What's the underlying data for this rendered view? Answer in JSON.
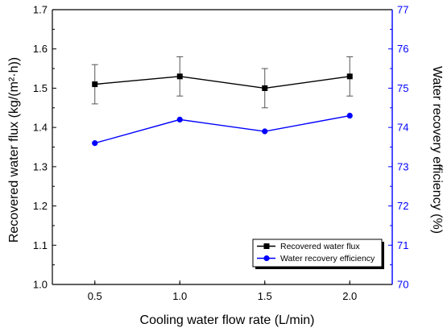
{
  "chart_data": {
    "type": "line",
    "xlabel": "Cooling water flow rate (L/min)",
    "ylabel_left": "Recovered water flux (kg/(m²·h))",
    "ylabel_right": "Water recovery efficiency (%)",
    "x": [
      0.5,
      1.0,
      1.5,
      2.0
    ],
    "x_ticks": [
      "0.5",
      "1.0",
      "1.5",
      "2.0"
    ],
    "xlim": [
      0.25,
      2.25
    ],
    "ylim_left": [
      1.0,
      1.7
    ],
    "yticks_left": [
      "1.0",
      "1.1",
      "1.2",
      "1.3",
      "1.4",
      "1.5",
      "1.6",
      "1.7"
    ],
    "ylim_right": [
      70,
      77
    ],
    "yticks_right": [
      "70",
      "71",
      "72",
      "73",
      "74",
      "75",
      "76",
      "77"
    ],
    "series": [
      {
        "name": "Recovered water flux",
        "axis": "left",
        "marker": "square",
        "color": "#000000",
        "values": [
          1.51,
          1.53,
          1.5,
          1.53
        ],
        "error": [
          0.05,
          0.05,
          0.05,
          0.05
        ]
      },
      {
        "name": "Water recovery efficiency",
        "axis": "right",
        "marker": "circle",
        "color": "#0000ff",
        "values": [
          73.6,
          74.2,
          73.9,
          74.3
        ]
      }
    ],
    "legend_position": "bottom-right",
    "right_axis_color": "#0000ff"
  }
}
